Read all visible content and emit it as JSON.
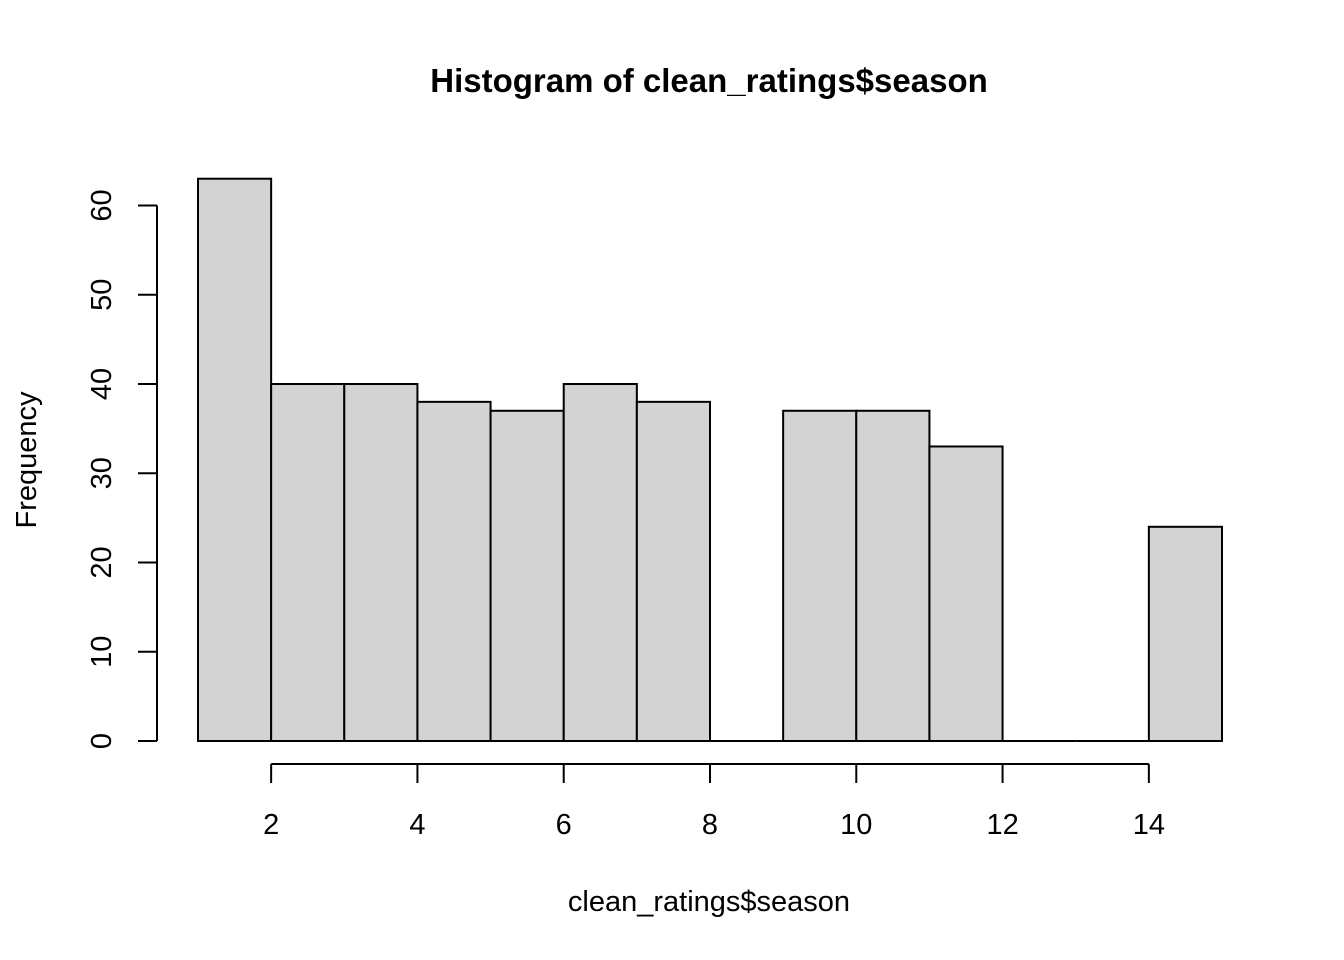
{
  "chart_data": {
    "type": "bar",
    "title": "Histogram of clean_ratings$season",
    "xlabel": "clean_ratings$season",
    "ylabel": "Frequency",
    "bins": [
      {
        "x0": 1,
        "x1": 2,
        "count": 63
      },
      {
        "x0": 2,
        "x1": 3,
        "count": 40
      },
      {
        "x0": 3,
        "x1": 4,
        "count": 40
      },
      {
        "x0": 4,
        "x1": 5,
        "count": 38
      },
      {
        "x0": 5,
        "x1": 6,
        "count": 37
      },
      {
        "x0": 6,
        "x1": 7,
        "count": 40
      },
      {
        "x0": 7,
        "x1": 8,
        "count": 38
      },
      {
        "x0": 8,
        "x1": 9,
        "count": 0
      },
      {
        "x0": 9,
        "x1": 10,
        "count": 37
      },
      {
        "x0": 10,
        "x1": 11,
        "count": 37
      },
      {
        "x0": 11,
        "x1": 12,
        "count": 33
      },
      {
        "x0": 12,
        "x1": 13,
        "count": 0
      },
      {
        "x0": 13,
        "x1": 14,
        "count": 0
      },
      {
        "x0": 14,
        "x1": 15,
        "count": 24
      }
    ],
    "xlim": [
      1,
      15
    ],
    "ylim": [
      0,
      63
    ],
    "x_ticks": [
      2,
      4,
      6,
      8,
      10,
      12,
      14
    ],
    "y_ticks": [
      0,
      10,
      20,
      30,
      40,
      50,
      60
    ],
    "bar_color": "#d3d3d3",
    "edge_color": "#000000",
    "grid": false,
    "legend": "none"
  }
}
